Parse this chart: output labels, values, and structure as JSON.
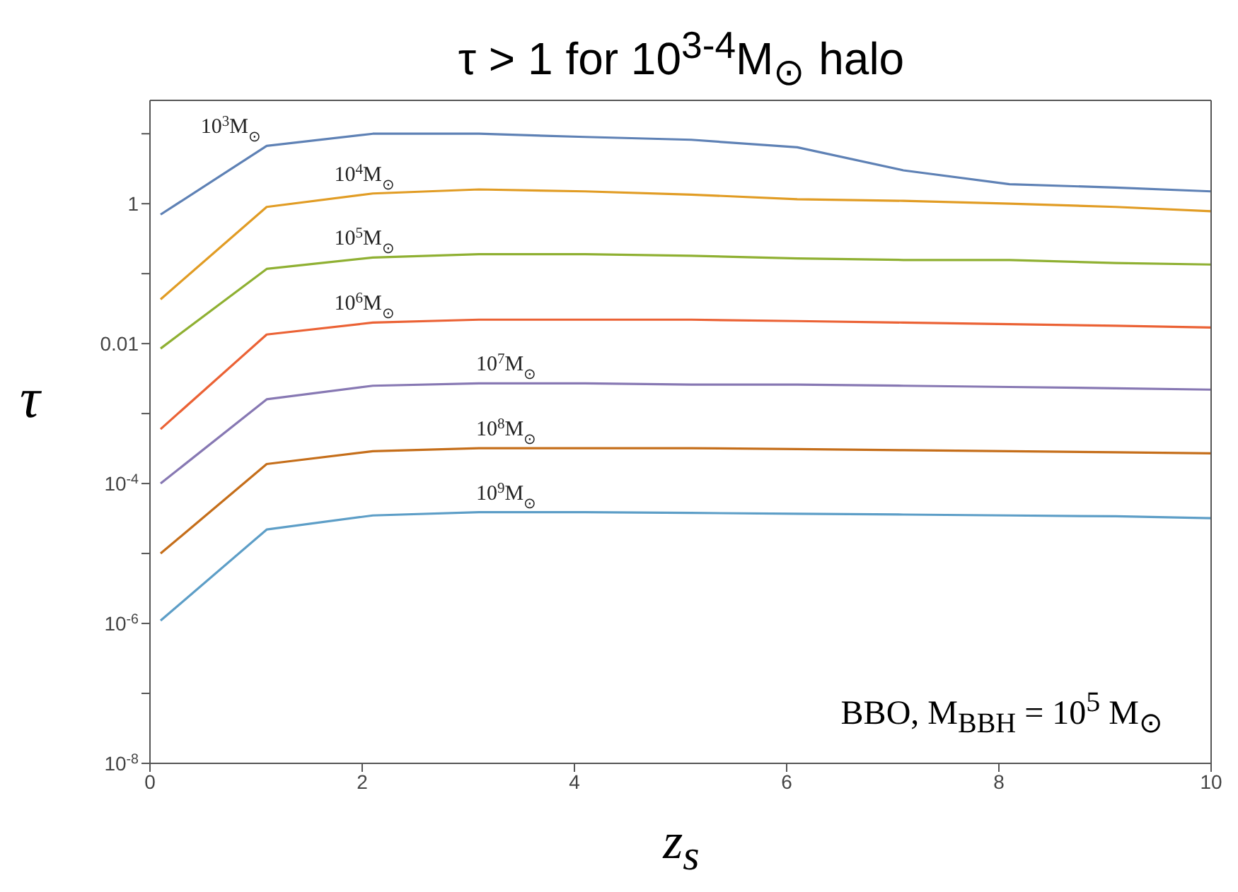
{
  "chart_data": {
    "type": "line",
    "title": "τ > 1 for 10$^{3-4}$M$_{⊙}$ halo",
    "xlabel": "z$_{s}$",
    "ylabel": "τ",
    "log": "y",
    "marker": "none",
    "line_style": "solid",
    "x": [
      0.1,
      1.1,
      2.1,
      3.1,
      4.1,
      5.1,
      6.1,
      7.1,
      8.1,
      9.1,
      10
    ],
    "xlim": [
      0,
      10
    ],
    "xticks": [
      0,
      2,
      4,
      6,
      8,
      10
    ],
    "ylim": [
      1e-08,
      30
    ],
    "yticks": [
      {
        "value": 1e-08,
        "label": "10$^{-8}$"
      },
      {
        "value": 1e-07,
        "label": null
      },
      {
        "value": 1e-06,
        "label": "10$^{-6}$"
      },
      {
        "value": 1e-05,
        "label": null
      },
      {
        "value": 0.0001,
        "label": "10$^{-4}$"
      },
      {
        "value": 0.001,
        "label": null
      },
      0.01,
      {
        "value": 0.1,
        "label": null
      },
      1,
      {
        "value": 10,
        "label": null
      }
    ],
    "series": [
      {
        "name": "10$^{3}$M$_{⊙}$",
        "color": "#5e81b5",
        "values": [
          0.7,
          6.7,
          10,
          10,
          9,
          8.2,
          6.4,
          3.0,
          1.9,
          1.7,
          1.5
        ]
      },
      {
        "name": "10$^{4}$M$_{⊙}$",
        "color": "#e19c24",
        "values": [
          0.043,
          0.9,
          1.4,
          1.6,
          1.5,
          1.35,
          1.16,
          1.1,
          1.0,
          0.9,
          0.78
        ]
      },
      {
        "name": "10$^{5}$M$_{⊙}$",
        "color": "#8fb032",
        "values": [
          0.0085,
          0.117,
          0.17,
          0.19,
          0.19,
          0.18,
          0.165,
          0.157,
          0.157,
          0.142,
          0.135
        ]
      },
      {
        "name": "10$^{6}$M$_{⊙}$",
        "color": "#eb6235",
        "values": [
          0.0006,
          0.0135,
          0.02,
          0.022,
          0.022,
          0.022,
          0.021,
          0.02,
          0.019,
          0.018,
          0.017
        ]
      },
      {
        "name": "10$^{7}$M$_{⊙}$",
        "color": "#8778b3",
        "values": [
          0.0001,
          0.0016,
          0.0025,
          0.0027,
          0.0027,
          0.0026,
          0.0026,
          0.0025,
          0.0024,
          0.0023,
          0.0022
        ]
      },
      {
        "name": "10$^{8}$M$_{⊙}$",
        "color": "#c56e1a",
        "values": [
          1e-05,
          0.00019,
          0.00029,
          0.00032,
          0.00032,
          0.00032,
          0.00031,
          0.0003,
          0.00029,
          0.00028,
          0.00027
        ]
      },
      {
        "name": "10$^{9}$M$_{⊙}$",
        "color": "#5d9ec7",
        "values": [
          1.1e-06,
          2.2e-05,
          3.5e-05,
          3.9e-05,
          3.9e-05,
          3.8e-05,
          3.7e-05,
          3.6e-05,
          3.5e-05,
          3.4e-05,
          3.2e-05
        ]
      }
    ],
    "annotations": [
      "BBO, M$_{BBH}$ = 10$^{5}$ M$_{⊙}$"
    ]
  }
}
